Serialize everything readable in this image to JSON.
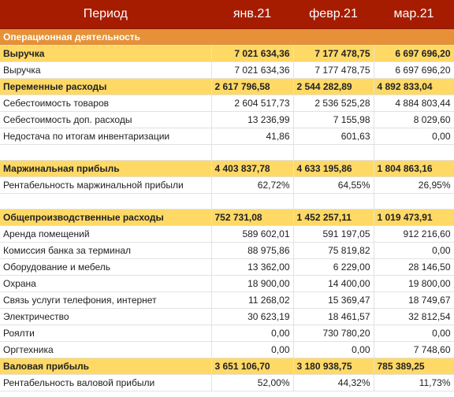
{
  "header": {
    "period": "Период",
    "months": [
      "янв.21",
      "февр.21",
      "мар.21"
    ]
  },
  "rows": [
    {
      "type": "section",
      "label": "Операционная деятельность",
      "values": [
        "",
        "",
        ""
      ]
    },
    {
      "type": "bold",
      "align": "right",
      "label": "Выручка",
      "values": [
        "7 021 634,36",
        "7 177 478,75",
        "6 697 696,20"
      ]
    },
    {
      "type": "normal",
      "label": "Выручка",
      "values": [
        "7 021 634,36",
        "7 177 478,75",
        "6 697 696,20"
      ]
    },
    {
      "type": "bold",
      "align": "left",
      "label": "Переменные расходы",
      "values": [
        "2 617 796,58",
        "2 544 282,89",
        "4 892 833,04"
      ]
    },
    {
      "type": "normal",
      "label": "Себестоимость товаров",
      "values": [
        "2 604 517,73",
        "2 536 525,28",
        "4 884 803,44"
      ]
    },
    {
      "type": "normal",
      "label": "Себестоимость доп. расходы",
      "values": [
        "13 236,99",
        "7 155,98",
        "8 029,60"
      ]
    },
    {
      "type": "normal",
      "label": "Недостача по итогам инвентаризации",
      "values": [
        "41,86",
        "601,63",
        "0,00"
      ]
    },
    {
      "type": "empty",
      "label": "",
      "values": [
        "",
        "",
        ""
      ]
    },
    {
      "type": "bold",
      "align": "left",
      "label": "Маржинальная прибыль",
      "values": [
        "4 403 837,78",
        "4 633 195,86",
        "1 804 863,16"
      ]
    },
    {
      "type": "normal",
      "label": "Рентабельность маржинальной прибыли",
      "values": [
        "62,72%",
        "64,55%",
        "26,95%"
      ]
    },
    {
      "type": "empty",
      "label": "",
      "values": [
        "",
        "",
        ""
      ]
    },
    {
      "type": "bold",
      "align": "left",
      "label": "Общепроизводственные расходы",
      "values": [
        "752 731,08",
        "1 452 257,11",
        "1 019 473,91"
      ]
    },
    {
      "type": "normal",
      "label": "Аренда помещений",
      "values": [
        "589 602,01",
        "591 197,05",
        "912 216,60"
      ]
    },
    {
      "type": "normal",
      "label": "Комиссия банка за терминал",
      "values": [
        "88 975,86",
        "75 819,82",
        "0,00"
      ]
    },
    {
      "type": "normal",
      "label": "Оборудование и мебель",
      "values": [
        "13 362,00",
        "6 229,00",
        "28 146,50"
      ]
    },
    {
      "type": "normal",
      "label": "Охрана",
      "values": [
        "18 900,00",
        "14 400,00",
        "19 800,00"
      ]
    },
    {
      "type": "normal",
      "label": "Связь услуги телефония, интернет",
      "values": [
        "11 268,02",
        "15 369,47",
        "18 749,67"
      ]
    },
    {
      "type": "normal",
      "label": "Электричество",
      "values": [
        "30 623,19",
        "18 461,57",
        "32 812,54"
      ]
    },
    {
      "type": "normal",
      "label": "Роялти",
      "values": [
        "0,00",
        "730 780,20",
        "0,00"
      ]
    },
    {
      "type": "normal",
      "label": "Оргтехника",
      "values": [
        "0,00",
        "0,00",
        "7 748,60"
      ]
    },
    {
      "type": "bold",
      "align": "left",
      "label": "Валовая прибыль",
      "values": [
        "3 651 106,70",
        "3 180 938,75",
        "785 389,25"
      ]
    },
    {
      "type": "normal",
      "label": "Рентабельность валовой прибыли",
      "values": [
        "52,00%",
        "44,32%",
        "11,73%"
      ]
    }
  ]
}
